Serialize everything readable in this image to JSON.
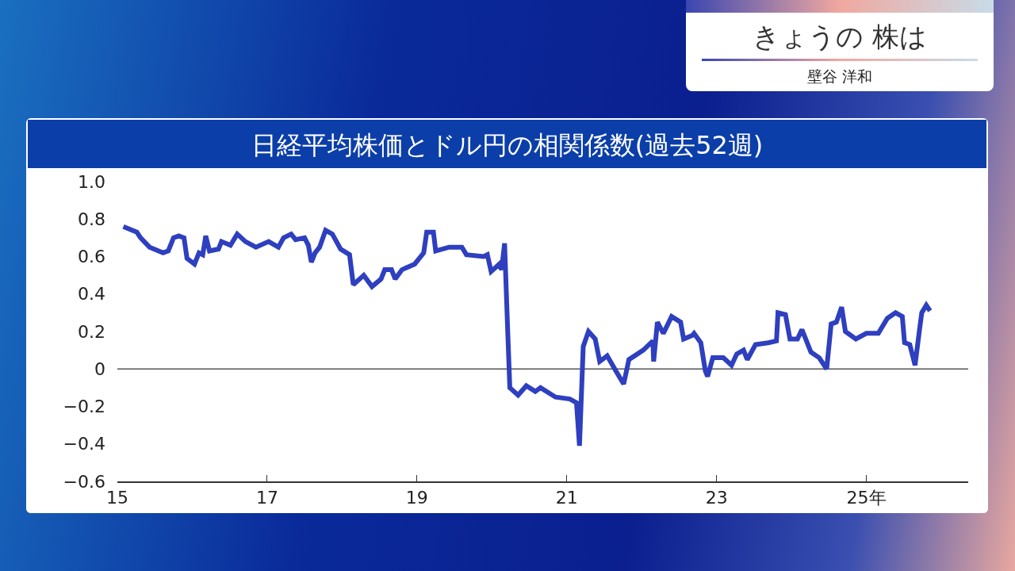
{
  "chart_data": {
    "type": "line",
    "title": "日経平均株価とドル円の相関係数(過去52週)",
    "annotations": [
      "きょうの 株は",
      "壁谷 洋和"
    ],
    "x": [
      15.08,
      15.26,
      15.31,
      15.43,
      15.61,
      15.68,
      15.75,
      15.82,
      15.89,
      15.93,
      16.03,
      16.09,
      16.14,
      16.18,
      16.23,
      16.35,
      16.39,
      16.51,
      16.6,
      16.71,
      16.85,
      17.02,
      17.15,
      17.22,
      17.32,
      17.38,
      17.5,
      17.55,
      17.59,
      17.64,
      17.7,
      17.78,
      17.87,
      17.98,
      18.1,
      18.15,
      18.29,
      18.4,
      18.52,
      18.57,
      18.66,
      18.71,
      18.8,
      18.97,
      19.09,
      19.13,
      19.22,
      19.25,
      19.43,
      19.6,
      19.66,
      19.89,
      19.94,
      19.99,
      20.1,
      20.13,
      20.17,
      20.21,
      20.24,
      20.35,
      20.46,
      20.58,
      20.65,
      20.85,
      21.04,
      21.13,
      21.17,
      21.22,
      21.29,
      21.38,
      21.44,
      21.54,
      21.67,
      21.76,
      21.83,
      22.02,
      22.15,
      22.16,
      22.21,
      22.29,
      22.4,
      22.52,
      22.56,
      22.68,
      22.7,
      22.79,
      22.85,
      22.88,
      22.95,
      23.09,
      23.2,
      23.27,
      23.36,
      23.41,
      23.52,
      23.69,
      23.8,
      23.82,
      23.92,
      23.98,
      24.08,
      24.14,
      24.19,
      24.26,
      24.37,
      24.47,
      24.53,
      24.6,
      24.67,
      24.72,
      24.86,
      25.0,
      25.16,
      25.28,
      25.39,
      25.48,
      25.51,
      25.58,
      25.65,
      25.71,
      25.74,
      25.8,
      25.85
    ],
    "series": [
      {
        "color": "#2e3fbf",
        "values": [
          0.76,
          0.73,
          0.7,
          0.65,
          0.62,
          0.63,
          0.7,
          0.71,
          0.7,
          0.59,
          0.56,
          0.62,
          0.61,
          0.71,
          0.63,
          0.64,
          0.68,
          0.66,
          0.72,
          0.68,
          0.65,
          0.68,
          0.65,
          0.7,
          0.72,
          0.69,
          0.7,
          0.66,
          0.57,
          0.62,
          0.65,
          0.74,
          0.72,
          0.64,
          0.61,
          0.45,
          0.5,
          0.44,
          0.48,
          0.53,
          0.53,
          0.48,
          0.53,
          0.56,
          0.62,
          0.73,
          0.73,
          0.63,
          0.65,
          0.65,
          0.61,
          0.6,
          0.61,
          0.52,
          0.56,
          0.53,
          0.67,
          0.22,
          -0.1,
          -0.14,
          -0.09,
          -0.12,
          -0.1,
          -0.15,
          -0.16,
          -0.18,
          -0.41,
          0.12,
          0.2,
          0.16,
          0.04,
          0.07,
          -0.02,
          -0.08,
          0.05,
          0.1,
          0.15,
          0.04,
          0.25,
          0.19,
          0.28,
          0.25,
          0.16,
          0.18,
          0.19,
          0.14,
          -0.01,
          -0.04,
          0.06,
          0.06,
          0.02,
          0.08,
          0.1,
          0.05,
          0.13,
          0.14,
          0.15,
          0.3,
          0.29,
          0.16,
          0.16,
          0.21,
          0.16,
          0.09,
          0.06,
          0.0,
          0.24,
          0.25,
          0.33,
          0.2,
          0.16,
          0.19,
          0.19,
          0.27,
          0.3,
          0.28,
          0.14,
          0.13,
          0.02,
          0.21,
          0.3,
          0.34,
          0.31
        ]
      }
    ],
    "xlim": [
      15,
      26.36
    ],
    "xticks": [
      15,
      17,
      19,
      21,
      23,
      {
        "value": 25,
        "label": "25年"
      }
    ],
    "ylim": [
      -0.6,
      1.0
    ],
    "yticks": [
      {
        "value": 1.0,
        "label": "1.0"
      },
      0.8,
      0.6,
      0.4,
      0.2,
      0,
      {
        "value": -0.2,
        "label": "−0.2"
      },
      {
        "value": -0.4,
        "label": "−0.4"
      },
      {
        "value": -0.6,
        "label": "−0.6"
      }
    ],
    "ref_lines": [
      {
        "axis": "y",
        "value": 0,
        "color": "#555555"
      }
    ],
    "grid": false,
    "marker": "none",
    "line_style": "solid"
  }
}
